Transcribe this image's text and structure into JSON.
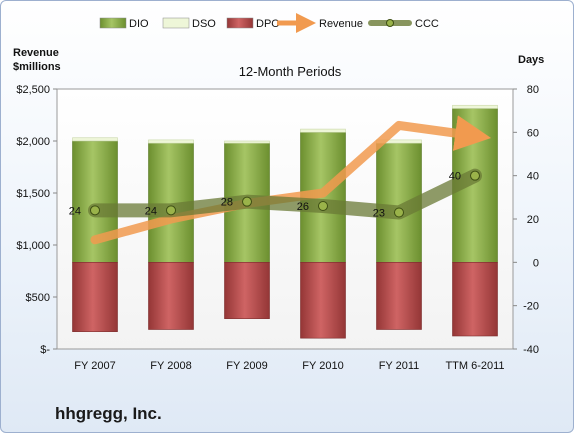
{
  "company": "hhgregg, Inc.",
  "chart_data": {
    "type": "bar",
    "title": "12-Month Periods",
    "categories": [
      "FY 2007",
      "FY 2008",
      "FY 2009",
      "FY 2010",
      "FY 2011",
      "TTM 6-2011"
    ],
    "legend_position": "top",
    "legend": [
      "DIO",
      "DSO",
      "DPO",
      "Revenue",
      "CCC"
    ],
    "left_axis": {
      "title_line1": "Revenue",
      "title_line2": "$millions",
      "range": [
        0,
        2500
      ],
      "ticks": [
        0,
        500,
        1000,
        1500,
        2000,
        2500
      ],
      "tick_labels": [
        "$-",
        "$500",
        "$1,000",
        "$1,500",
        "$2,000",
        "$2,500"
      ]
    },
    "right_axis": {
      "title": "Days",
      "range": [
        -40,
        80
      ],
      "ticks": [
        -40,
        -20,
        0,
        20,
        40,
        60,
        80
      ],
      "tick_labels": [
        "-40",
        "-20",
        "0",
        "20",
        "40",
        "60",
        "80"
      ]
    },
    "series": [
      {
        "name": "DIO",
        "axis": "right",
        "kind": "stacked-positive",
        "color": "#8aad4a",
        "values": [
          56,
          55,
          55,
          60,
          55,
          71
        ]
      },
      {
        "name": "DSO",
        "axis": "right",
        "kind": "stacked-positive",
        "color": "#eef6d8",
        "values": [
          1.5,
          1.5,
          1,
          1.5,
          1.5,
          1.5
        ]
      },
      {
        "name": "DPO",
        "axis": "right",
        "kind": "negative",
        "color": "#b84a4a",
        "values": [
          -32,
          -31,
          -26,
          -35,
          -31,
          -34
        ]
      },
      {
        "name": "Revenue",
        "axis": "left",
        "kind": "line",
        "color": "#f19a4f",
        "values": [
          1050,
          1250,
          1400,
          1500,
          2150,
          2050
        ]
      },
      {
        "name": "CCC",
        "axis": "right",
        "kind": "line",
        "color": "#6a7a36",
        "values": [
          24,
          24,
          28,
          26,
          23,
          40
        ],
        "labels": [
          "24",
          "24",
          "28",
          "26",
          "23",
          "40"
        ]
      }
    ]
  }
}
